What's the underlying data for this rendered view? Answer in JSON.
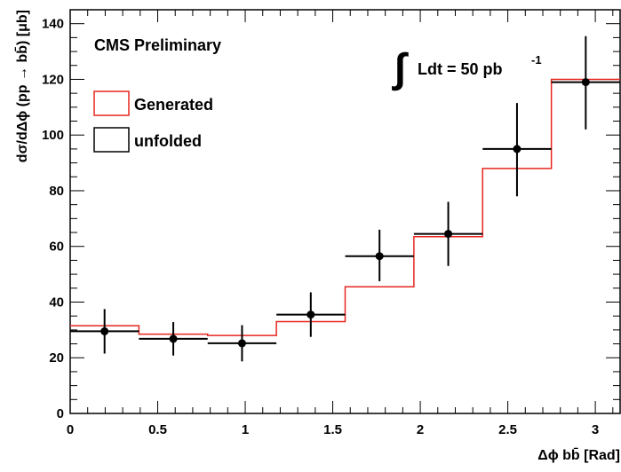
{
  "chart_data": {
    "type": "histogram",
    "header": "CMS Preliminary",
    "luminosity": {
      "symbol": "∫",
      "text": "Ldt = 50 pb",
      "superscript": "-1"
    },
    "xlabel": "Δϕ bb̄ [Rad]",
    "ylabel": "dσ/dΔϕ (pp → bb̄) [μb]",
    "xlim": [
      0,
      3.1416
    ],
    "ylim": [
      0,
      145
    ],
    "x_ticks": [
      0,
      0.5,
      1,
      1.5,
      2,
      2.5,
      3
    ],
    "x_tick_labels": [
      "0",
      "0.5",
      "1",
      "1.5",
      "2",
      "2.5",
      "3"
    ],
    "y_ticks": [
      0,
      20,
      40,
      60,
      80,
      100,
      120,
      140
    ],
    "y_tick_labels": [
      "0",
      "20",
      "40",
      "60",
      "80",
      "100",
      "120",
      "140"
    ],
    "bin_edges": [
      0,
      0.3927,
      0.7854,
      1.1781,
      1.5708,
      1.9635,
      2.3562,
      2.7489,
      3.1416
    ],
    "series": [
      {
        "name": "Generated",
        "style": "step",
        "color": "#e8261d",
        "values": [
          31.5,
          28.5,
          28.0,
          33.0,
          45.5,
          63.5,
          88.0,
          120.0
        ]
      },
      {
        "name": "unfolded",
        "style": "points-with-errors",
        "color": "#000000",
        "values": [
          29.5,
          26.8,
          25.2,
          35.5,
          56.5,
          64.5,
          95.0,
          119.0
        ],
        "errors_low": [
          8.0,
          6.0,
          6.5,
          8.0,
          9.0,
          11.5,
          17.0,
          17.0
        ],
        "errors_high": [
          8.0,
          6.0,
          6.5,
          8.0,
          9.5,
          11.5,
          16.5,
          16.5
        ]
      }
    ],
    "legend": "top-left",
    "grid": false
  }
}
